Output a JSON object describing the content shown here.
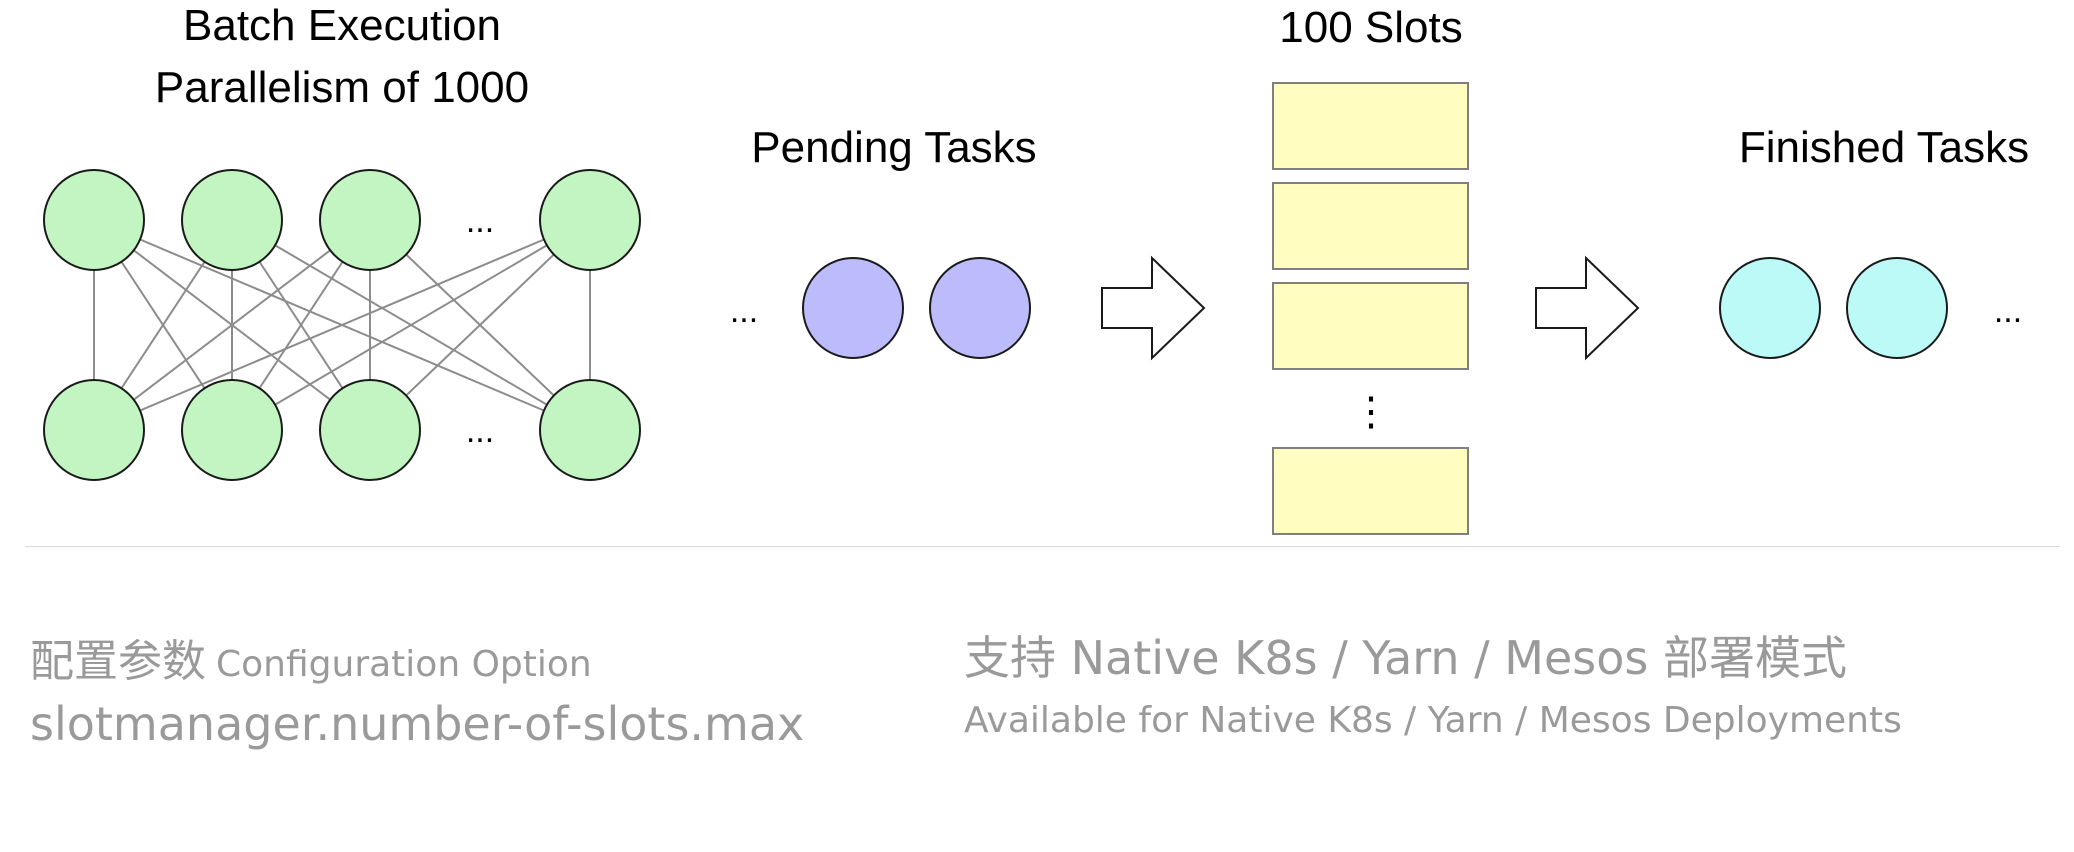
{
  "diagram": {
    "batch": {
      "title_line1": "Batch Execution",
      "title_line2": "Parallelism of 1000",
      "top_ellipsis": "...",
      "bottom_ellipsis": "...",
      "node_color": "#c2f5c2"
    },
    "pending": {
      "title": "Pending Tasks",
      "ellipsis": "...",
      "task_color": "#bcbcfc"
    },
    "slots": {
      "title": "100 Slots",
      "ellipsis": "⋮",
      "slot_color": "#fffdc0"
    },
    "finished": {
      "title": "Finished Tasks",
      "ellipsis": "...",
      "task_color": "#bcfaf8"
    }
  },
  "captions": {
    "left": {
      "label_cn": "配置参数",
      "label_en": "Configuration Option",
      "option": "slotmanager.number-of-slots.max"
    },
    "right": {
      "heading": "支持 Native K8s / Yarn / Mesos 部署模式",
      "subheading": "Available for Native K8s / Yarn / Mesos Deployments"
    }
  }
}
